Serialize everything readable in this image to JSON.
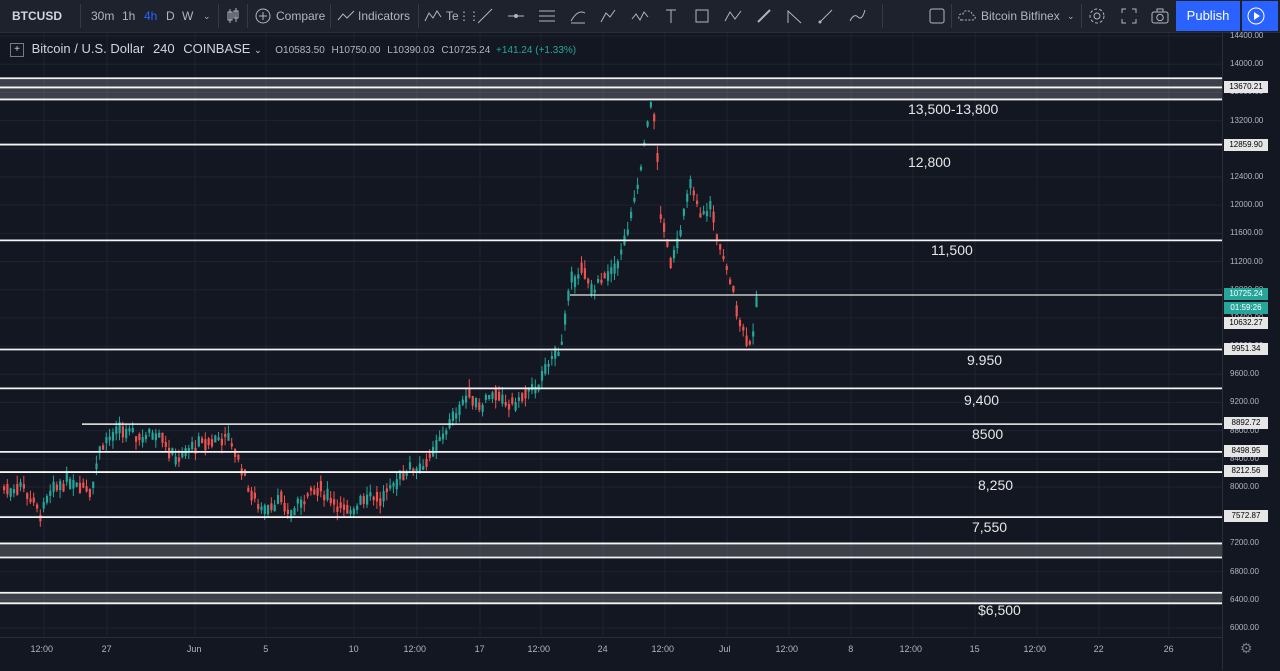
{
  "toolbar": {
    "symbol": "BTCUSD",
    "intervals": [
      "30m",
      "1h",
      "4h",
      "D",
      "W"
    ],
    "compare_label": "Compare",
    "indicators_label": "Indicators",
    "templates_label": "Te",
    "drawing_tools": [
      "trend-line-icon",
      "horizontal-line-icon",
      "parallel-channel-icon",
      "pitchfork-icon",
      "fib-retracement-icon",
      "elliott-wave-icon",
      "text-icon",
      "rectangle-icon",
      "abcd-pattern-icon",
      "brush-icon",
      "measure-icon",
      "pen-icon",
      "path-icon"
    ],
    "exchange": "Bitcoin Bitfinex",
    "publish_label": "Publish"
  },
  "legend": {
    "title": "Bitcoin / U.S. Dollar",
    "interval": "240",
    "exchange": "COINBASE",
    "open": "O10583.50",
    "high": "H10750.00",
    "low": "L10390.03",
    "close": "C10725.24",
    "change": "+141.24 (+1.33%)"
  },
  "price_axis": {
    "ticks": [
      "14400.00",
      "14000.00",
      "13600.00",
      "13200.00",
      "12800.00",
      "12400.00",
      "12000.00",
      "11600.00",
      "11200.00",
      "10800.00",
      "10400.00",
      "10000.00",
      "9600.00",
      "9200.00",
      "8800.00",
      "8400.00",
      "8000.00",
      "7600.00",
      "7200.00",
      "6800.00",
      "6400.00",
      "6000.00"
    ],
    "tags": [
      "13670.21",
      "12859.90",
      "10725.24",
      "01:59:26",
      "10632.27",
      "9951.34",
      "8892.72",
      "8498.95",
      "8212.56",
      "7572.87"
    ]
  },
  "time_axis": {
    "ticks": [
      "12:00",
      "27",
      "Jun",
      "5",
      "10",
      "12:00",
      "17",
      "12:00",
      "24",
      "12:00",
      "Jul",
      "12:00",
      "8",
      "12:00",
      "15",
      "12:00",
      "22",
      "26"
    ]
  },
  "levels": {
    "labels": [
      "13,500-13,800",
      "12,800",
      "11,500",
      "9.950",
      "9,400",
      "8500",
      "8,250",
      "7,550",
      "$6,500"
    ]
  },
  "colors": {
    "background": "#131722",
    "up": "#26a69a",
    "down": "#ef5350",
    "accent": "#2962ff"
  },
  "chart_data": {
    "type": "candlestick",
    "title": "Bitcoin / U.S. Dollar",
    "xlabel": "",
    "ylabel": "",
    "ylim": [
      5900,
      14600
    ],
    "horizontal_levels": [
      13800,
      13670.21,
      13500,
      12859.9,
      11500,
      10725.24,
      9951.34,
      9400,
      8892.72,
      8498.95,
      8212.56,
      7572.87,
      7200,
      7000,
      6500,
      6350
    ],
    "approx_path": [
      [
        0,
        8000
      ],
      [
        10,
        7950
      ],
      [
        20,
        8050
      ],
      [
        30,
        7820
      ],
      [
        40,
        7600
      ],
      [
        50,
        7900
      ],
      [
        60,
        8050
      ],
      [
        70,
        8100
      ],
      [
        80,
        8050
      ],
      [
        90,
        7950
      ],
      [
        100,
        8600
      ],
      [
        110,
        8700
      ],
      [
        120,
        8800
      ],
      [
        130,
        8750
      ],
      [
        140,
        8700
      ],
      [
        150,
        8750
      ],
      [
        160,
        8800
      ],
      [
        170,
        8450
      ],
      [
        180,
        8400
      ],
      [
        190,
        8550
      ],
      [
        200,
        8600
      ],
      [
        210,
        8650
      ],
      [
        220,
        8700
      ],
      [
        230,
        8650
      ],
      [
        240,
        8300
      ],
      [
        250,
        7900
      ],
      [
        260,
        7700
      ],
      [
        270,
        7750
      ],
      [
        280,
        7800
      ],
      [
        290,
        7600
      ],
      [
        300,
        7800
      ],
      [
        310,
        7900
      ],
      [
        320,
        7950
      ],
      [
        330,
        7850
      ],
      [
        340,
        7700
      ],
      [
        350,
        7600
      ],
      [
        360,
        7850
      ],
      [
        370,
        7900
      ],
      [
        380,
        7800
      ],
      [
        390,
        7950
      ],
      [
        400,
        8200
      ],
      [
        410,
        8250
      ],
      [
        420,
        8300
      ],
      [
        430,
        8400
      ],
      [
        440,
        8700
      ],
      [
        450,
        8900
      ],
      [
        460,
        9200
      ],
      [
        470,
        9300
      ],
      [
        480,
        9150
      ],
      [
        490,
        9350
      ],
      [
        500,
        9200
      ],
      [
        510,
        9150
      ],
      [
        520,
        9250
      ],
      [
        530,
        9350
      ],
      [
        540,
        9500
      ],
      [
        550,
        9800
      ],
      [
        560,
        10000
      ],
      [
        570,
        10900
      ],
      [
        580,
        11100
      ],
      [
        590,
        10800
      ],
      [
        600,
        10900
      ],
      [
        610,
        11000
      ],
      [
        620,
        11300
      ],
      [
        630,
        11800
      ],
      [
        640,
        12500
      ],
      [
        650,
        13500
      ],
      [
        655,
        13000
      ],
      [
        660,
        11800
      ],
      [
        670,
        11200
      ],
      [
        680,
        11700
      ],
      [
        690,
        12300
      ],
      [
        700,
        11800
      ],
      [
        710,
        12000
      ],
      [
        720,
        11300
      ],
      [
        730,
        10900
      ],
      [
        740,
        10300
      ],
      [
        750,
        10000
      ],
      [
        757,
        10725
      ]
    ]
  }
}
